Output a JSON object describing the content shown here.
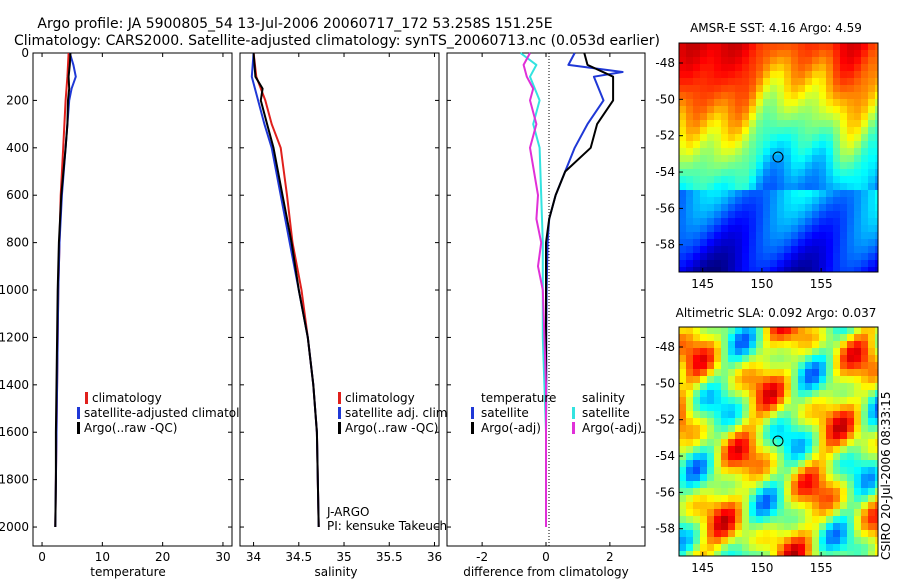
{
  "title": {
    "line1": "Argo profile: JA 5900805_54 13-Jul-2006 20060717_172 53.258S 151.25E",
    "line2": "Climatology: CARS2000. Satellite-adjusted climatology: synTS_20060713.nc (0.053d earlier)"
  },
  "colors": {
    "climatology": "#e0201c",
    "satellite": "#1f38d6",
    "argo": "#000000",
    "satellite_salinity": "#33e3e0",
    "argo_salinity_adj": "#e030d8"
  },
  "chart_data": [
    {
      "type": "line",
      "xlabel": "temperature",
      "xlim": [
        -1.5,
        31.5
      ],
      "ylim": [
        2080,
        0
      ],
      "x_ticks": [
        0,
        10,
        20,
        30
      ],
      "y_ticks": [
        0,
        200,
        400,
        600,
        800,
        1000,
        1200,
        1400,
        1600,
        1800,
        2000
      ],
      "legend": [
        "climatology",
        "satellite-adjusted climatology",
        "Argo(..raw -QC)"
      ],
      "legend_position": "lower-right",
      "series": [
        {
          "name": "climatology",
          "color": "#e0201c",
          "depth": [
            0,
            100,
            200,
            400,
            600,
            800,
            1000,
            1200,
            1400,
            1600,
            1800,
            2000
          ],
          "values": [
            4.4,
            4.2,
            3.9,
            3.5,
            3.1,
            2.9,
            2.7,
            2.6,
            2.5,
            2.4,
            2.3,
            2.2
          ]
        },
        {
          "name": "satellite-adjusted climatology",
          "color": "#1f38d6",
          "depth": [
            0,
            50,
            100,
            150,
            200,
            400,
            600,
            800,
            1000,
            1200,
            1400,
            1600,
            1800,
            2000
          ],
          "values": [
            4.6,
            5.2,
            5.6,
            4.9,
            4.5,
            3.9,
            3.3,
            2.9,
            2.7,
            2.6,
            2.5,
            2.4,
            2.3,
            2.2
          ]
        },
        {
          "name": "Argo(..raw -QC)",
          "color": "#000000",
          "depth": [
            0,
            50,
            100,
            150,
            200,
            300,
            400,
            600,
            800,
            1000,
            1200,
            1400,
            1600,
            1800,
            2000
          ],
          "values": [
            4.7,
            4.6,
            4.4,
            4.5,
            4.3,
            4.2,
            3.9,
            3.2,
            2.8,
            2.6,
            2.5,
            2.4,
            2.3,
            2.3,
            2.2
          ]
        }
      ]
    },
    {
      "type": "line",
      "xlabel": "salinity",
      "xlim": [
        33.85,
        36.05
      ],
      "ylim": [
        2080,
        0
      ],
      "x_ticks": [
        34,
        34.5,
        35,
        35.5,
        36
      ],
      "legend": [
        "climatology",
        "satellite adj. clim.",
        "Argo(..raw -QC)"
      ],
      "legend_position": "lower-right",
      "annotations": [
        "J-ARGO",
        "PI: kensuke Takeuchi"
      ],
      "series": [
        {
          "name": "climatology",
          "color": "#e0201c",
          "depth": [
            0,
            100,
            200,
            300,
            400,
            600,
            800,
            1000,
            1200,
            1400,
            1600,
            1800,
            2000
          ],
          "values": [
            34.0,
            34.03,
            34.13,
            34.2,
            34.3,
            34.37,
            34.43,
            34.53,
            34.6,
            34.66,
            34.7,
            34.71,
            34.72
          ]
        },
        {
          "name": "satellite adj. clim.",
          "color": "#1f38d6",
          "depth": [
            0,
            100,
            200,
            300,
            400,
            600,
            800,
            1000,
            1200,
            1400,
            1600,
            1800,
            2000
          ],
          "values": [
            34.0,
            33.98,
            34.05,
            34.12,
            34.2,
            34.3,
            34.4,
            34.5,
            34.6,
            34.66,
            34.7,
            34.71,
            34.72
          ]
        },
        {
          "name": "Argo(..raw -QC)",
          "color": "#000000",
          "depth": [
            0,
            100,
            150,
            200,
            300,
            400,
            600,
            800,
            1000,
            1200,
            1400,
            1600,
            1800,
            2000
          ],
          "values": [
            34.0,
            34.02,
            34.1,
            34.08,
            34.15,
            34.22,
            34.32,
            34.42,
            34.5,
            34.6,
            34.66,
            34.7,
            34.71,
            34.72
          ]
        }
      ]
    },
    {
      "type": "line",
      "xlabel": "difference from climatology",
      "xlim": [
        -3.1,
        3.1
      ],
      "ylim": [
        2080,
        0
      ],
      "x_ticks": [
        -2,
        0,
        2
      ],
      "legend": [
        "temperature",
        "satellite",
        "Argo(-adj)",
        "salinity",
        "satellite",
        "Argo(-adj)"
      ],
      "legend_position": "lower-center",
      "series": [
        {
          "name": "satellite",
          "color": "#1f38d6",
          "depth": [
            0,
            50,
            80,
            100,
            200,
            300,
            400,
            600,
            700,
            800,
            1000,
            1200,
            1400,
            1600,
            1800,
            2000
          ],
          "values": [
            0.9,
            0.7,
            2.4,
            1.5,
            1.8,
            1.3,
            0.9,
            0.3,
            0.1,
            0.05,
            0.02,
            0.01,
            0.01,
            0.0,
            0.0,
            0.0
          ]
        },
        {
          "name": "Argo(-adj)",
          "color": "#000000",
          "depth": [
            0,
            50,
            100,
            200,
            300,
            400,
            500,
            600,
            700,
            800,
            1000,
            1200,
            1400,
            1600,
            1800,
            2000
          ],
          "values": [
            1.2,
            1.3,
            2.1,
            2.1,
            1.6,
            1.4,
            0.6,
            0.3,
            0.1,
            0.0,
            0.0,
            0.0,
            0.0,
            0.0,
            0.0,
            0.0
          ]
        },
        {
          "name": "satellite",
          "color": "#33e3e0",
          "depth": [
            0,
            50,
            100,
            200,
            300,
            400,
            600,
            800,
            1000,
            1200,
            1400,
            1600,
            1800,
            2000
          ],
          "values": [
            -0.8,
            -0.3,
            -0.5,
            -0.2,
            -0.4,
            -0.2,
            -0.15,
            -0.1,
            -0.1,
            -0.1,
            -0.05,
            0.0,
            0.0,
            0.0
          ]
        },
        {
          "name": "Argo(-adj)",
          "color": "#e030d8",
          "depth": [
            0,
            50,
            100,
            150,
            200,
            300,
            400,
            600,
            700,
            800,
            900,
            1000,
            1200,
            1400,
            1600,
            1800,
            2000
          ],
          "values": [
            -0.5,
            -0.7,
            -0.6,
            -0.4,
            -0.5,
            -0.3,
            -0.5,
            -0.25,
            -0.3,
            -0.15,
            -0.25,
            -0.1,
            -0.05,
            0.0,
            0.0,
            0.0,
            0.0
          ]
        }
      ]
    }
  ],
  "maps": [
    {
      "title": "AMSR-E SST: 4.16 Argo: 4.59",
      "y_ticks": [
        -48,
        -50,
        -52,
        -54,
        -56,
        -58
      ],
      "x_ticks": [
        145,
        150,
        155
      ]
    },
    {
      "title": "Altimetric SLA: 0.092 Argo: 0.037",
      "y_ticks": [
        -48,
        -50,
        -52,
        -54,
        -56,
        -58
      ],
      "x_ticks": [
        145,
        150,
        155
      ]
    }
  ],
  "side_label": "CSIRO 20-Jul-2006 08:33:15"
}
